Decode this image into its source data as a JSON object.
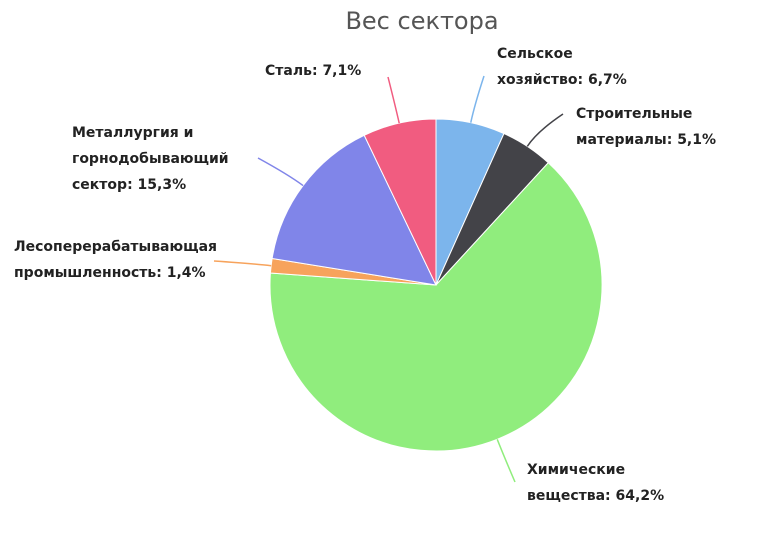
{
  "chart_data": {
    "type": "pie",
    "title": "Вес сектора",
    "categories": [
      "Сельское хозяйство",
      "Строительные материалы",
      "Химические вещества",
      "Лесоперерабатывающая промышленность",
      "Металлургия и горнодобывающий сектор",
      "Сталь"
    ],
    "values": [
      6.7,
      5.1,
      64.2,
      1.4,
      15.3,
      7.1
    ],
    "value_labels": [
      "6,7%",
      "5,1%",
      "64,2%",
      "1,4%",
      "15,3%",
      "7,1%"
    ],
    "label_separator": ": ",
    "colors": [
      "#7cb5ec",
      "#434348",
      "#90ed7d",
      "#f7a35c",
      "#8085e9",
      "#f15c80"
    ]
  }
}
